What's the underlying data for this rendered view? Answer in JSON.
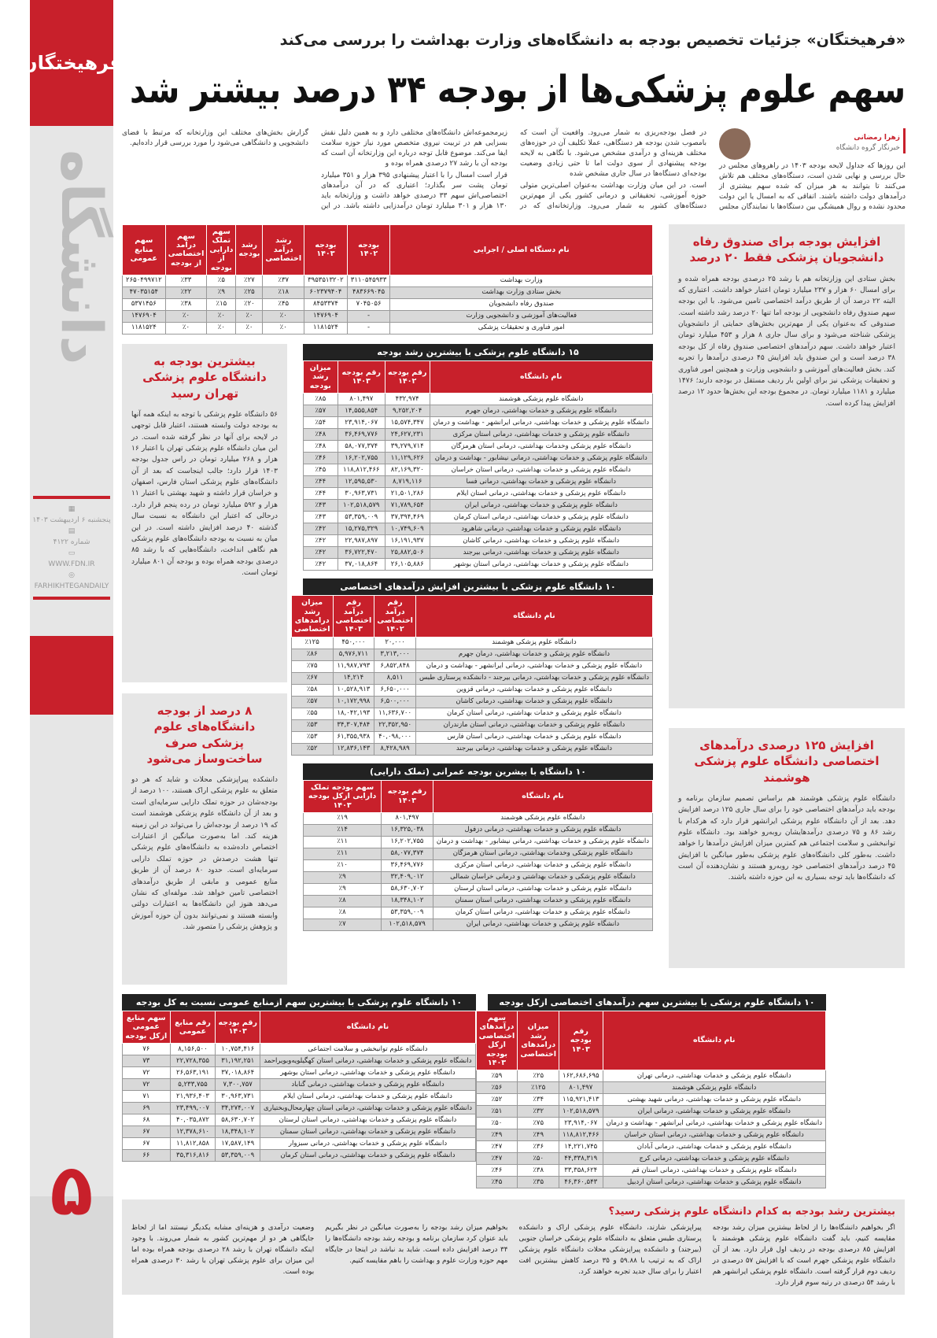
{
  "brand": {
    "logo": "فرهیختگان",
    "section": "دانشگاه",
    "date": "پنجشنبه ۶ اردیبهشت ۱۴۰۳",
    "issue": "شماره ۴۱۲۲",
    "site": "WWW.FDN.IR",
    "social": "FARHIKHTEGANDAILY",
    "page": "۵",
    "accent": "#c8202b"
  },
  "header": {
    "kicker": "«فرهیختگان» جزئیات تخصیص بودجه به دانشگاه‌های وزارت بهداشت را بررسی می‌کند",
    "title": "سهم علوم پزشکی‌ها از بودجه ۳۴ درصد بیشتر شد"
  },
  "author": {
    "name": "زهرا رمضانی",
    "role": "خبرنگار گروه دانشگاه"
  },
  "intro": [
    "این روزها که جداول لایحه بودجه ۱۴۰۳ در راهروهای مجلس در حال بررسی و نهایی شدن است، دستگاه‌های مختلف هم تلاش می‌کنند تا بتوانند به هر میزان که شده سهم بیشتری از درآمدهای دولت داشته باشند. اتفاقی که به امسال یا این دولت محدود نشده و روال همیشگی بین دستگاه‌ها با نمایندگان مجلس در فصل بودجه‌ریزی به شمار می‌رود. واقعیت آن است که بامصوب شدن بودجه هر دستگاهی، عملا تکلیف آن در حوزه‌های مختلف هزینه‌ای و درآمدی مشخص می‌شود. با نگاهی به لایحه بودجه پیشنهادی از سوی دولت اما تا حتی زیادی وضعیت بودجه‌ای دستگاه‌ها در سال جاری مشخص شده",
    "است. در این میان وزارت بهداشت به‌عنوان اصلی‌ترین متولی حوزه آموزشی، تحقیقاتی و درمانی کشور یکی از مهم‌ترین دستگاه‌های کشور به شمار می‌رود. وزارتخانه‌ای که در زیرمجموعه‌اش دانشگاه‌های مختلفی دارد و به همین دلیل نقش بسزایی هم در تربیت نیروی متخصص مورد نیاز حوزه سلامت ایفا می‌کند. موضوع قابل توجه درباره این وزارتخانه آن است که بودجه آن با رشد ۲۷ درصدی همراه بوده و",
    "قرار است امسال را با اعتبار پیشنهادی ۳۹۵ هزار و ۳۵۱ میلیارد تومان پشت سر بگذارد؛ اعتباری که در آن درآمدهای اختصاصی‌اش سهم ۳۳ درصدی خواهد داشت و وزارتخانه باید ۱۳۰ هزار و ۳۰۱ میلیارد تومان درآمدزایی داشته باشد. در این گزارش بخش‌های مختلف این وزارتخانه که مرتبط با فضای دانشجویی و دانشگاهی می‌شود را مورد بررسی قرار داده‌ایم."
  ],
  "tables": {
    "main": {
      "title": "",
      "headers": [
        "نام دستگاه اصلی / اجرایی",
        "بودجه ۱۴۰۲",
        "بودجه ۱۴۰۳",
        "رشد درآمد اختصاصی",
        "رشد بودجه",
        "سهم تملک دارایی از بودجه",
        "سهم درآمد اختصاصی از بودجه",
        "سهم منابع عمومی"
      ],
      "rows": [
        [
          "وزارت بهداشت",
          "۳۱۱۰۵۴۵۹۳۳",
          "۳۹۵۳۵۱۳۲۰۲",
          "٪۳۷",
          "٪۲۷",
          "٪۵",
          "٪۳۳",
          "۲۶۵۰۴۹۹۷۱۲"
        ],
        [
          "بخش ستادی وزارت بهداشت",
          "۴۸۳۶۶۹۰۴۵",
          "۶۰۲۳۷۹۴۰۴",
          "٪۱۸",
          "٪۲۵",
          "٪۹",
          "٪۲۲",
          "۴۷۰۳۵۱۵۴"
        ],
        [
          "صندوق رفاه دانشجویان",
          "۷۰۴۵۰۵۶",
          "۸۴۵۳۳۷۴",
          "٪۴۵",
          "٪۲۰",
          "٪۱۵",
          "٪۳۸",
          "۵۳۷۱۴۵۶"
        ],
        [
          "فعالیت‌های آموزشی و دانشجویی وزارت",
          "-",
          "۱۴۷۶۹۰۴",
          "٪۰",
          "٪۰",
          "٪۰",
          "٪۰",
          "۱۴۷۶۹۰۴"
        ],
        [
          "امور فناوری و تحقیقات پزشکی",
          "-",
          "۱۱۸۱۵۲۴",
          "٪۰",
          "٪۰",
          "٪۰",
          "٪۰",
          "۱۱۸۱۵۲۴"
        ]
      ]
    },
    "growth": {
      "title": "۱۵ دانشگاه علوم پزشکی با بیشترین رشد بودجه",
      "headers": [
        "نام دانشگاه",
        "رقم بودجه ۱۴۰۲",
        "رقم بودجه ۱۴۰۳",
        "میزان رشد بودجه"
      ],
      "rows": [
        [
          "دانشگاه علوم پزشکی هوشمند",
          "۴۳۲,۹۷۴",
          "۸۰۱,۴۹۷",
          "٪۸۵"
        ],
        [
          "دانشگاه علوم پزشکی و خدمات بهداشتی، درمان جهرم",
          "۹,۲۵۲,۲۰۴",
          "۱۴,۵۵۵,۸۵۴",
          "٪۵۷"
        ],
        [
          "دانشگاه علوم پزشکی و خدمات بهداشتی، درمانی ایرانشهر - بهداشت و درمان",
          "۱۵,۵۷۴,۳۴۷",
          "۲۳,۹۱۴,۰۶۷",
          "٪۵۴"
        ],
        [
          "دانشگاه علوم پزشکی و خدمات بهداشتی، درمانی استان مرکزی",
          "۲۴,۶۲۷,۲۳۱",
          "۳۶,۴۶۹,۷۷۶",
          "٪۴۸"
        ],
        [
          "دانشگاه علوم پزشکی وخدمات بهداشتی، درمانی استان هرمزگان",
          "۳۹,۲۷۹,۷۱۴",
          "۵۸,۰۷۷,۳۷۴",
          "٪۴۸"
        ],
        [
          "دانشگاه علوم پزشکی و خدمات بهداشتی، درمانی نیشابور - بهداشت و درمان",
          "۱۱,۱۲۹,۶۲۶",
          "۱۶,۲۰۲,۷۵۵",
          "٪۴۶"
        ],
        [
          "دانشگاه علوم پزشکی و خدمات بهداشتی، درمانی استان خراسان",
          "۸۲,۱۶۹,۳۲۰",
          "۱۱۸,۸۱۲,۴۶۶",
          "٪۴۵"
        ],
        [
          "دانشگاه علوم پزشکی و خدمات بهداشتی، درمانی فسا",
          "۸,۷۱۹,۱۱۶",
          "۱۲,۵۹۵,۵۳۰",
          "٪۴۴"
        ],
        [
          "دانشگاه علوم پزشکی و خدمات بهداشتی، درمانی استان ایلام",
          "۲۱,۵۰۱,۲۸۶",
          "۳۰,۹۶۳,۷۳۱",
          "٪۴۴"
        ],
        [
          "دانشگاه علوم پزشکی و خدمات بهداشتی، درمانی ایران",
          "۷۱,۷۸۹,۶۵۴",
          "۱۰۲,۵۱۸,۵۷۹",
          "٪۴۳"
        ],
        [
          "دانشگاه علوم پزشکی و خدمات بهداشتی، درمانی استان کرمان",
          "۳۷,۳۹۴,۴۶۹",
          "۵۳,۳۵۹,۰۰۹",
          "٪۴۳"
        ],
        [
          "دانشگاه علوم پزشکی و خدمات بهداشتی، درمانی شاهرود",
          "۱۰,۷۴۹,۶۰۹",
          "۱۵,۲۷۵,۳۲۹",
          "٪۴۲"
        ],
        [
          "دانشگاه علوم پزشکی و خدمات بهداشتی، درمانی کاشان",
          "۱۶,۱۹۱,۹۳۷",
          "۲۲,۹۸۷,۸۹۷",
          "٪۴۲"
        ],
        [
          "دانشگاه علوم پزشکی و خدمات بهداشتی، درمانی بیرجند",
          "۲۵,۸۸۲,۵۰۶",
          "۳۶,۷۲۲,۴۷۰",
          "٪۴۲"
        ],
        [
          "دانشگاه علوم پزشکی و خدمات بهداشتی، درمانی استان بوشهر",
          "۲۶,۱۰۵,۸۸۶",
          "۳۷,۰۱۸,۸۶۴",
          "٪۴۲"
        ]
      ]
    },
    "revenue": {
      "title": "۱۰ دانشگاه علوم پزشکی با بیشترین افزایش درآمدهای اختصاصی",
      "headers": [
        "نام دانشگاه",
        "رقم درآمد اختصاصی ۱۴۰۲",
        "رقم درآمد اختصاصی ۱۴۰۳",
        "میزان رشد درامدهای اختصاصی"
      ],
      "rows": [
        [
          "دانشگاه علوم پزشکی هوشمند",
          "۲۰,۰۰۰",
          "۴۵۰,۰۰۰",
          "٪۱۲۵"
        ],
        [
          "دانشگاه علوم پزشکی و خدمات بهداشتی، درمان جهرم",
          "۳,۲۱۳,۰۰۰",
          "۵,۹۷۶,۷۱۱",
          "٪۸۶"
        ],
        [
          "دانشگاه علوم پزشکی و خدمات بهداشتی، درمانی ایرانشهر - بهداشت و درمان",
          "۶,۸۵۲,۸۴۸",
          "۱۱,۹۸۷,۷۹۳",
          "٪۷۵"
        ],
        [
          "دانشگاه علوم پزشکی و خدمات بهداشتی، درمانی بیرجند - دانشکده پرستاری طبس",
          "۸,۵۱۱",
          "۱۴,۲۱۴",
          "٪۶۷"
        ],
        [
          "دانشگاه علوم پزشکی و خدمات بهداشتی، درمانی قزوین",
          "۶,۶۵۰,۰۰۰",
          "۱۰,۵۲۸,۹۱۳",
          "٪۵۸"
        ],
        [
          "دانشگاه علوم پزشکی و خدمات بهداشتی، درمانی کاشان",
          "۶,۵۰۰,۰۰۰",
          "۱۰,۱۷۲,۹۹۸",
          "٪۵۷"
        ],
        [
          "دانشگاه علوم پزشکی و خدمات بهداشتی، درمانی استان کرمان",
          "۱۱,۶۳۶,۷۰۰",
          "۱۸,۰۴۲,۱۹۳",
          "٪۵۵"
        ],
        [
          "دانشگاه علوم پزشکی و خدمات بهداشتی، درمانی استان مازندران",
          "۲۲,۳۵۲,۹۵۰",
          "۳۴,۳۰۷,۴۸۴",
          "٪۵۳"
        ],
        [
          "دانشگاه علوم پزشکی و خدمات بهداشتی، درمانی استان فارس",
          "۴۰,۰۹۸,۰۰۰",
          "۶۱,۳۵۵,۹۳۸",
          "٪۵۳"
        ],
        [
          "دانشگاه علوم پزشکی و خدمات بهداشتی، درمانی بیرجند",
          "۸,۴۲۸,۹۸۹",
          "۱۲,۸۳۶,۱۴۳",
          "٪۵۲"
        ]
      ]
    },
    "capital": {
      "title": "۱۰ دانشگاه با بیشرین بودجه عمرانی (تملک دارایی)",
      "headers": [
        "نام دانشگاه",
        "رقم بودجه ۱۴۰۳",
        "سهم بودجه تملک دارایی ازکل بودجه ۱۴۰۳"
      ],
      "rows": [
        [
          "دانشگاه علوم پزشکی هوشمند",
          "۸۰۱,۴۹۷",
          "٪۱۹"
        ],
        [
          "دانشگاه علوم پزشکی و خدمات بهداشتی، درمانی دزفول",
          "۱۶,۳۲۵,۰۳۸",
          "٪۱۴"
        ],
        [
          "دانشگاه علوم پزشکی و خدمات بهداشتی، درمانی نیشابور - بهداشت و درمان",
          "۱۶,۲۰۲,۷۵۵",
          "٪۱۱"
        ],
        [
          "دانشگاه علوم پزشکی وخدمات بهداشتی، درمانی استان هرمزگان",
          "۵۸,۰۷۷,۳۷۴",
          "٪۱۱"
        ],
        [
          "دانشگاه علوم پزشکی و خدمات بهداشتی، درمانی استان مرکزی",
          "۳۶,۴۶۹,۷۷۶",
          "٪۱۰"
        ],
        [
          "دانشگاه علوم پزشکی و خدمات بهداشتی و درمانی خراسان شمالی",
          "۳۲,۴۰۹,۰۱۲",
          "٪۹"
        ],
        [
          "دانشگاه علوم پزشکی و خدمات بهداشتی، درمانی استان لرستان",
          "۵۸,۶۳۰,۷۰۲",
          "٪۹"
        ],
        [
          "دانشگاه علوم پزشکی و خدمات بهداشتی، درمانی استان سمنان",
          "۱۸,۳۴۸,۱۰۲",
          "٪۸"
        ],
        [
          "دانشگاه علوم پزشکی و خدمات بهداشتی، درمانی استان کرمان",
          "۵۳,۳۵۹,۰۰۹",
          "٪۸"
        ],
        [
          "دانشگاه علوم پزشکی و خدمات بهداشتی، درمانی ایران",
          "۱۰۲,۵۱۸,۵۷۹",
          "٪۷"
        ]
      ]
    },
    "public": {
      "title": "۱۰ دانشگاه علوم پزشکی با بیشترین سهم ازمنابع عمومی نسبت به کل بودجه",
      "headers": [
        "نام دانشگاه",
        "رقم بودجه ۱۴۰۳",
        "رقم منابع عمومی",
        "سهم منابع عمومی ازکل بودجه"
      ],
      "rows": [
        [
          "دانشگاه علوم توانبخشی و سلامت اجتماعی",
          "۱۰,۷۵۴,۴۱۶",
          "۸,۱۵۶,۵۰۰",
          "۷۶"
        ],
        [
          "دانشگاه علوم پزشکی و خدمات بهداشتی، درمانی استان کهگیلویه‌وبویراحمد",
          "۳۱,۱۹۲,۲۵۱",
          "۲۲,۷۲۸,۳۵۵",
          "۷۳"
        ],
        [
          "دانشگاه علوم پزشکی و خدمات بهداشتی، درمانی استان بوشهر",
          "۳۷,۰۱۸,۸۶۴",
          "۲۶,۵۶۳,۱۹۱",
          "۷۲"
        ],
        [
          "دانشگاه علوم پزشکی و خدمات بهداشتی، درمانی گناباد",
          "۷,۳۰۰,۷۵۷",
          "۵,۲۳۳,۷۵۵",
          "۷۲"
        ],
        [
          "دانشگاه علوم پزشکی و خدمات بهداشتی، درمانی استان ایلام",
          "۳۰,۹۶۳,۷۳۱",
          "۲۱,۹۳۶,۴۰۳",
          "۷۱"
        ],
        [
          "دانشگاه علوم پزشکی و خدمات بهداشتی، درمانی استان چهارمحال‌وبختیاری",
          "۳۴,۲۷۴,۰۰۷",
          "۲۳,۴۹۹,۰۰۷",
          "۶۹"
        ],
        [
          "دانشگاه علوم پزشکی و خدمات بهداشتی، درمانی استان لرستان",
          "۵۸,۶۳۰,۷۰۲",
          "۴۰,۰۳۵,۸۷۲",
          "۶۸"
        ],
        [
          "دانشگاه علوم پزشکی و خدمات بهداشتی، درمانی استان سمنان",
          "۱۸,۳۴۸,۱۰۲",
          "۱۲,۳۷۸,۶۱۰",
          "۶۷"
        ],
        [
          "دانشگاه علوم پزشکی و خدمات بهداشتی، درمانی سبزوار",
          "۱۷,۵۸۷,۱۴۹",
          "۱۱,۸۱۲,۸۵۸",
          "۶۷"
        ],
        [
          "دانشگاه علوم پزشکی و خدمات بهداشتی، درمانی استان کرمان",
          "۵۳,۳۵۹,۰۰۹",
          "۳۵,۳۱۶,۸۱۶",
          "۶۶"
        ]
      ]
    },
    "share": {
      "title": "۱۰ دانشگاه علوم پزشکی با بیشترین سهم درآمدهای اختصاصی ازکل بودجه",
      "headers": [
        "نام دانشگاه",
        "رقم بودجه ۱۴۰۳",
        "میزان رشد درامدهای اختصاصی",
        "سهم درآمدهای اختصاصی ازکل بودجه ۱۴۰۳"
      ],
      "rows": [
        [
          "دانشگاه علوم پزشکی و خدمات بهداشتی، درمانی تهران",
          "۱۶۲,۶۸۶,۶۹۵",
          "٪۲۵",
          "٪۵۹"
        ],
        [
          "دانشگاه علوم پزشکی هوشمند",
          "۸۰۱,۴۹۷",
          "٪۱۲۵",
          "٪۵۶"
        ],
        [
          "دانشگاه علوم پزشکی و خدمات بهداشتی، درمانی شهید بهشتی",
          "۱۱۵,۹۲۱,۴۱۳",
          "٪۳۴",
          "٪۵۲"
        ],
        [
          "دانشگاه علوم پزشکی و خدمات بهداشتی، درمانی ایران",
          "۱۰۲,۵۱۸,۵۷۹",
          "٪۳۲",
          "٪۵۱"
        ],
        [
          "دانشگاه علوم پزشکی و خدمات بهداشتی، درمانی ایرانشهر - بهداشت و درمان",
          "۲۳,۹۱۴,۰۶۷",
          "٪۷۵",
          "٪۵۰"
        ],
        [
          "دانشگاه علوم پزشکی و خدمات بهداشتی، درمانی استان خراسان",
          "۱۱۸,۸۱۲,۴۶۶",
          "٪۴۹",
          "٪۴۹"
        ],
        [
          "دانشگاه علوم پزشکی و خدمات بهداشتی، درمانی آبادان",
          "۱۴,۲۲۱,۷۴۵",
          "٪۳۶",
          "٪۴۷"
        ],
        [
          "دانشگاه علوم پزشکی و خدمات بهداشتی، درمانی کرج",
          "۴۴,۳۳۸,۳۱۹",
          "٪۵۰",
          "٪۴۷"
        ],
        [
          "دانشگاه علوم پزشکی و خدمات بهداشتی، درمانی استان قم",
          "۳۳,۳۵۸,۶۲۴",
          "٪۳۸",
          "٪۴۶"
        ],
        [
          "دانشگاه علوم پزشکی و خدمات بهداشتی، درمانی استان اردبیل",
          "۴۶,۳۶۰,۵۴۳",
          "٪۳۵",
          "٪۴۵"
        ]
      ]
    }
  },
  "boxes": {
    "welfare": {
      "title": "افزایش بودجه برای صندوق رفاه دانشجویان پزشکی فقط ۲۰ درصد",
      "text": "بخش ستادی این وزارتخانه هم با رشد ۲۵ درصدی بودجه همراه شده و برای امسال ۶۰ هزار و ۲۳۷ میلیارد تومان اعتبار خواهد داشت. اعتباری که البته ۲۲ درصد آن از طریق درآمد اختصاصی تامین می‌شود. با این بودجه سهم صندوق رفاه دانشجویی از بودجه اما تنها ۲۰ درصد رشد داشته است. صندوقی که به‌عنوان یکی از مهم‌ترین بخش‌های حمایتی از دانشجویان پزشکی شناخته می‌شود و برای سال جاری ۸ هزار و ۴۵۳ میلیارد تومان اعتبار خواهد داشت. سهم درآمدهای اختصاصی صندوق رفاه از کل بودجه ۳۸ درصد است و این صندوق باید افزایش ۴۵ درصدی درآمدها را تجربه کند. بخش فعالیت‌های آموزشی و دانشجویی وزارت و همچنین امور فناوری و تحقیقات پزشکی نیز برای اولین بار ردیف مستقل در بودجه دارند؛ ۱۴۷۶ میلیارد و ۱۱۸۱ میلیارد تومان. در مجموع بودجه این بخش‌ها حدود ۱۲ درصد افزایش پیدا کرده است."
    },
    "hooshmand": {
      "title": "افزایش ۱۲۵ درصدی درآمدهای اختصاصی دانشگاه علوم پزشکی هوشمند",
      "text": "دانشگاه علوم پزشکی هوشمند هم براساس تصمیم سازمان برنامه و بودجه باید درآمدهای اختصاصی خود را برای سال جاری ۱۲۵ درصد افزایش دهد. بعد از آن دانشگاه علوم پزشکی ایرانشهر قرار دارد که هرکدام با رشد ۸۶ و ۷۵ درصدی درآمدهایشان روبه‌رو خواهند بود. دانشگاه علوم توانبخشی و سلامت اجتماعی هم کمترین میزان افزایش درآمدها را خواهد داشت. به‌طور کلی دانشگاه‌های علوم پزشکی به‌طور میانگین با افزایش ۴۵ درصد درآمدهای اختصاصی خود روبه‌رو هستند و نشان‌دهنده آن است که دانشگاه‌ها باید توجه بسیاری به این حوزه داشته باشند."
    },
    "tehran": {
      "title": "بیشترین بودجه به دانشگاه علوم پزشکی تهران رسید",
      "text": "۵۶ دانشگاه علوم پزشکی با توجه به اینکه همه آنها به بودجه دولت وابسته هستند، اعتبار قابل توجهی در لایحه برای آنها در نظر گرفته شده است. در این میان دانشگاه علوم پزشکی تهران با اعتبار ۱۶ هزار و ۲۶۸ میلیارد تومان در راس جدول بودجه ۱۴۰۳ قرار دارد؛ جالب اینجاست که بعد از آن دانشگاه‌های علوم پزشکی استان فارس، اصفهان و خراسان قرار داشته و شهید بهشتی با اعتبار ۱۱ هزار و ۵۹۲ میلیارد تومان در رده پنجم قرار دارد. درحالی که اعتبار این دانشگاه به نسبت سال گذشته ۴۰ درصد افزایش داشته است. در این میان به نسبت به بودجه دانشگاه‌های علوم پزشکی هم نگاهی انداخت، دانشگاه‌هایی که با رشد ۸۵ درصدی بودجه همراه بوده و بودجه آن ۸۰۱ میلیارد تومان است."
    },
    "capital": {
      "title": "۸ درصد از بودجه دانشگاه‌های علوم پزشکی صرف ساخت‌وساز می‌شود",
      "text": "دانشکده پیراپزشکی محلات و شاید که هر دو متعلق به علوم پزشکی اراک هستند، ۱۰۰ درصد از بودجه‌شان در حوزه تملک دارایی سرمایه‌ای است و بعد از آن دانشگاه علوم پزشکی هوشمند است که ۱۹ درصد از بودجه‌اش را می‌تواند در این زمینه هزینه کند. اما به‌صورت میانگین از اعتبارات اختصاص داده‌شده به دانشگاه‌های علوم پزشکی تنها هشت درصدش در حوزه تملک دارایی سرمایه‌ای است. حدود ۸۰ درصد آن از طریق منابع عمومی و مابقی از طریق درآمدهای اختصاصی تامین خواهد شد. مولفه‌ای که نشان می‌دهد هنوز این دانشگاه‌ها به اعتبارات دولتی وابسته هستند و نمی‌توانند بدون آن حوزه آموزش و پژوهش پزشکی را متصور شد."
    }
  },
  "bottom": {
    "title": "بیشترین رشد بودجه به کدام دانشگاه علوم پزشکی رسید؟",
    "cols": [
      "اگر بخواهیم دانشگاه‌ها را از لحاظ بیشترین میزان رشد بودجه مقایسه کنیم، باید گفت دانشگاه علوم پزشکی هوشمند با افزایش ۸۵ درصدی بودجه در ردیف اول قرار دارد. بعد از آن دانشگاه علوم پزشکی جهرم است که با افزایش ۵۷ درصدی در ردیف دوم قرار گرفته است. دانشگاه علوم پزشکی ایرانشهر هم با رشد ۵۴ درصدی در رتبه سوم قرار دارد.",
      "پیراپزشکی شازند، دانشگاه علوم پزشکی اراک و دانشکده پرستاری طبس متعلق به دانشگاه علوم پزشکی خراسان جنوبی (بیرجند) و دانشکده پیراپزشکی محلات دانشگاه علوم پزشکی اراک که به ترتیب با ۵۹.۸۸ و ۳۵ درصد کاهش بیشترین افت اعتبار را برای سال جدید تجربه خواهند کرد.",
      "بخواهیم میزان رشد بودجه را به‌صورت میانگین در نظر بگیریم باید عنوان کرد سازمان برنامه و بودجه رشد بودجه دانشگاه‌ها را ۳۴ درصد افزایش داده است. شاید بد نباشد در اینجا در جایگاه مهم حوزه وزارت علوم و بهداشت را باهم مقایسه کنیم.",
      "وضعیت درآمدی و هزینه‌ای مشابه یکدیگر نیستند اما از لحاظ جایگاهی هر دو از مهم‌ترین کشور به شمار می‌روند. با وجود اینکه دانشگاه تهران با رشد ۲۸ درصدی بودجه همراه بوده اما این میزان برای علوم پزشکی تهران با رشد ۳۰ درصدی همراه بوده است."
    ]
  }
}
